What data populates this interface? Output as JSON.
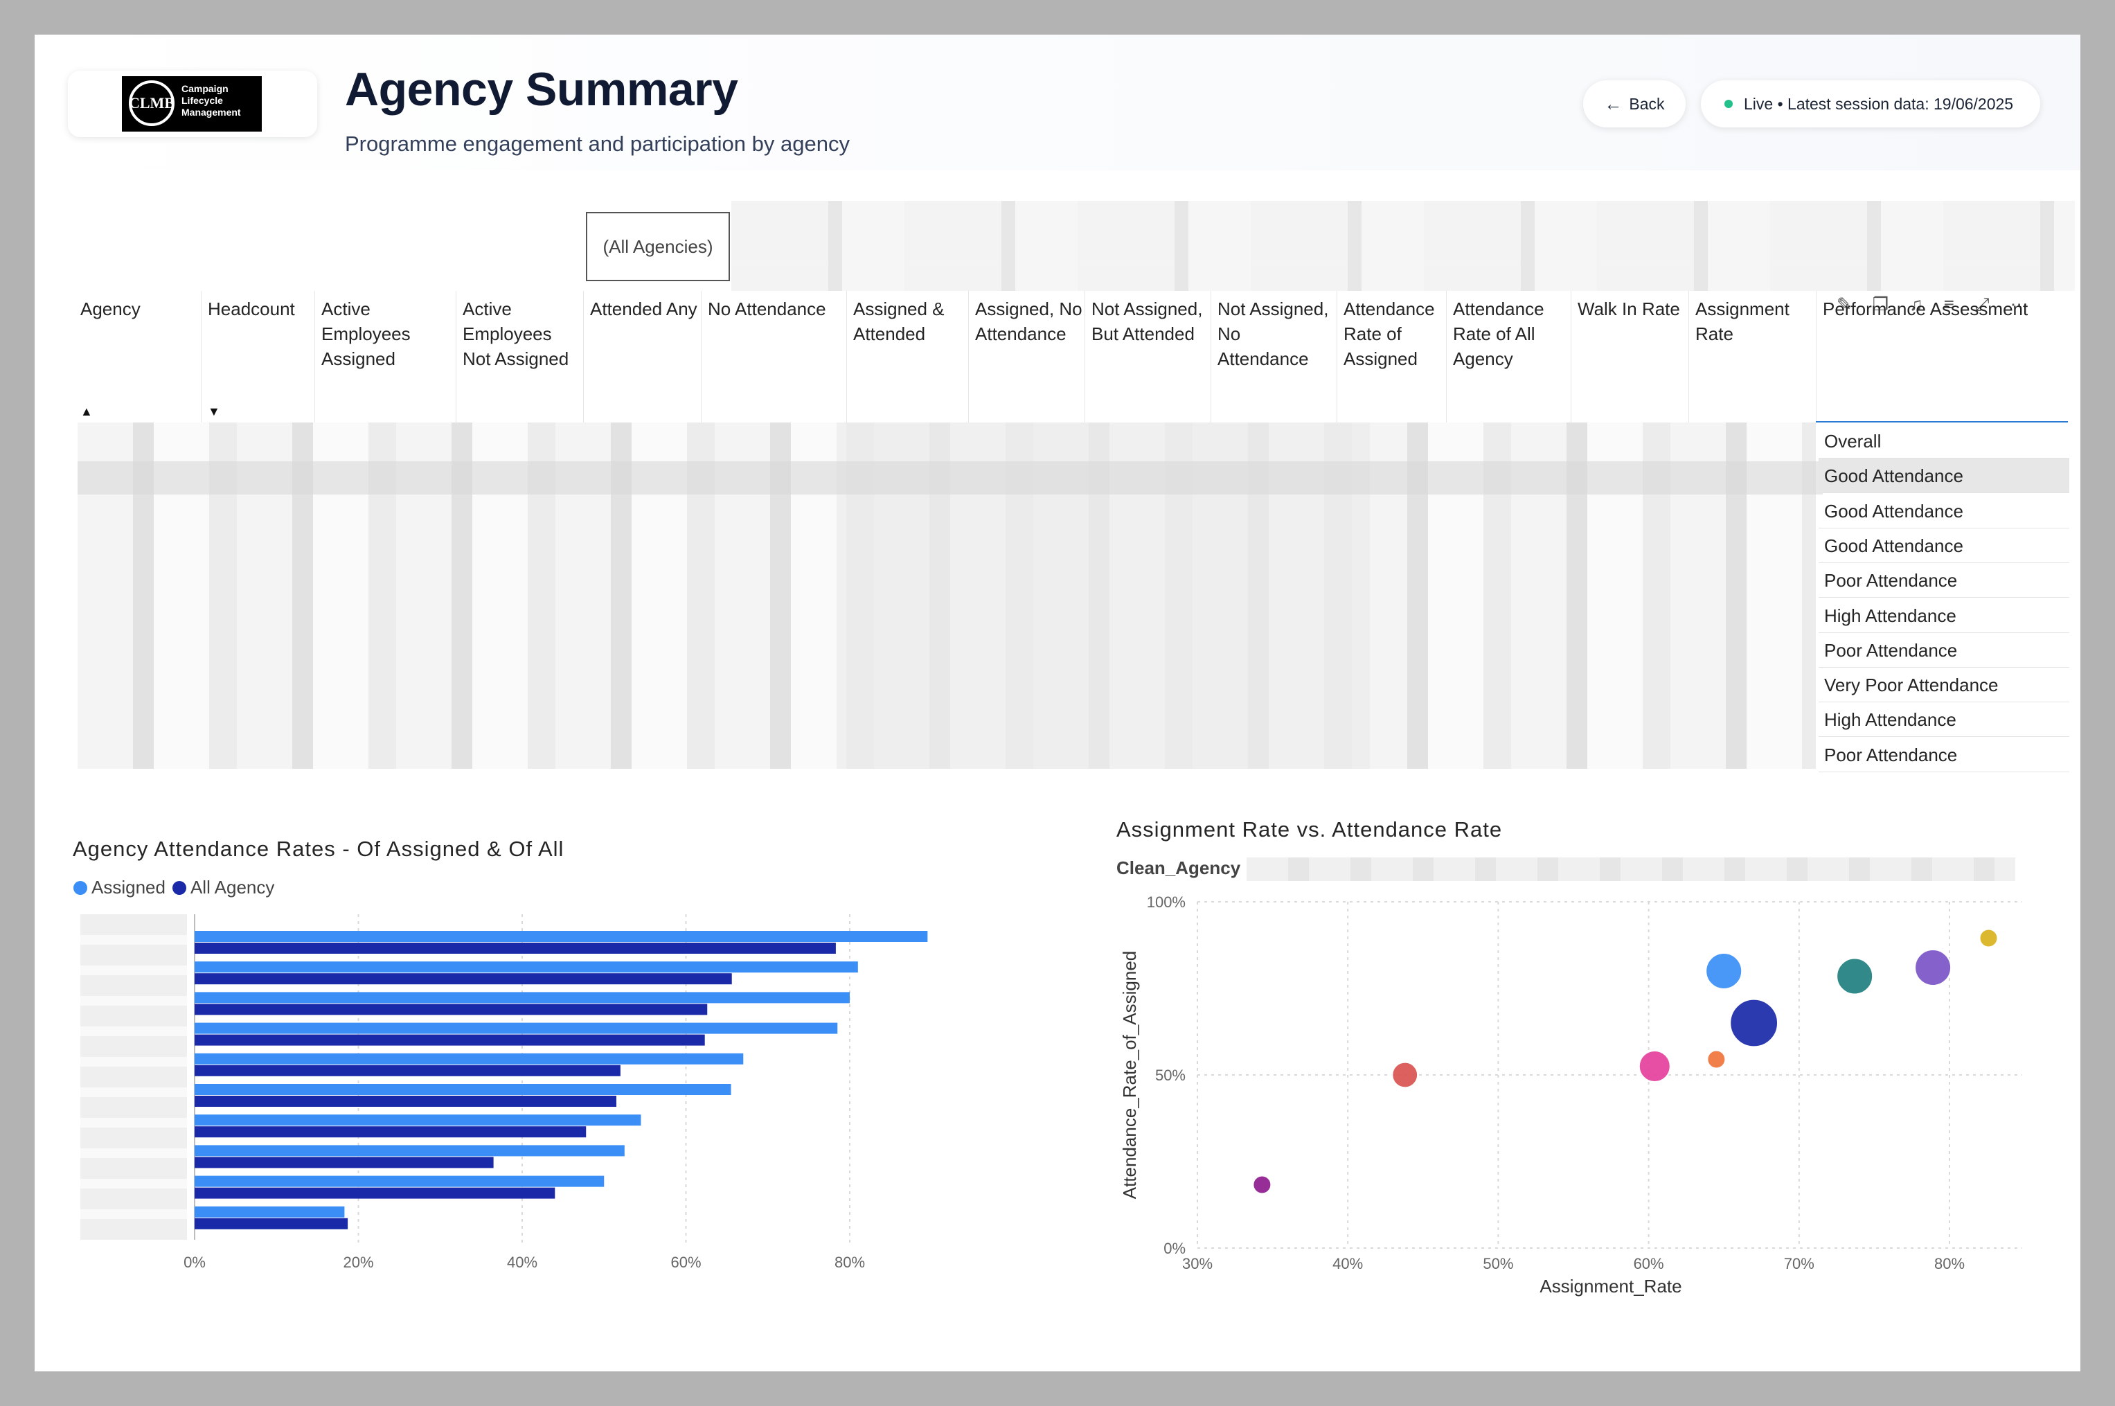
{
  "header": {
    "logo_mark": "CLMB",
    "logo_text": "Campaign Lifecycle Management",
    "title": "Agency Summary",
    "subtitle": "Programme engagement and participation by agency",
    "back_label": "Back",
    "back_icon": "arrow-left-icon",
    "live_label": "Live • Latest session data: 19/06/2025",
    "live_color": "#22c08a"
  },
  "slicer": {
    "value": "(All Agencies)"
  },
  "table": {
    "columns": [
      "Agency",
      "Headcount",
      "Active Employees Assigned",
      "Active Employees Not Assigned",
      "Attended Any",
      "No Attendance",
      "Assigned & Attended",
      "Assigned, No Attendance",
      "Not Assigned, But Attended",
      "Not Assigned, No Attendance",
      "Attendance Rate of Assigned",
      "Attendance Rate of All Agency",
      "Walk In Rate",
      "Assignment Rate",
      "Performance Assessment"
    ],
    "performance": [
      "Overall",
      "Good Attendance",
      "Good Attendance",
      "Good Attendance",
      "Poor Attendance",
      "High Attendance",
      "Poor Attendance",
      "Very Poor Attendance",
      "High Attendance",
      "Poor Attendance"
    ],
    "selected_row": 1
  },
  "bar_chart": {
    "title": "Agency Attendance Rates - Of Assigned & Of All",
    "legend": [
      "Assigned",
      "All Agency"
    ],
    "colors": {
      "assigned": "#3a8ef6",
      "all": "#1a29a8"
    },
    "ticks": [
      "0%",
      "20%",
      "40%",
      "60%",
      "80%"
    ]
  },
  "scatter_chart": {
    "title": "Assignment Rate vs. Attendance Rate",
    "legend_key": "Clean_Agency",
    "xlabel": "Assignment_Rate",
    "ylabel": "Attendance_Rate_of_Assigned",
    "xticks": [
      "30%",
      "40%",
      "50%",
      "60%",
      "70%",
      "80%"
    ],
    "yticks": [
      "0%",
      "50%",
      "100%"
    ]
  },
  "chart_data": [
    {
      "type": "bar",
      "orientation": "horizontal",
      "title": "Agency Attendance Rates - Of Assigned & Of All",
      "categories": [
        "",
        "",
        "",
        "",
        "",
        "",
        "",
        "",
        "",
        ""
      ],
      "series": [
        {
          "name": "Assigned",
          "values": [
            89.5,
            81,
            80,
            78.5,
            67,
            65.5,
            54.5,
            52.5,
            50,
            18.3
          ]
        },
        {
          "name": "All Agency",
          "values": [
            78.3,
            65.6,
            62.6,
            62.3,
            52,
            51.5,
            47.8,
            36.5,
            44,
            18.7
          ]
        }
      ],
      "xlim": [
        0,
        100
      ],
      "grid": true,
      "legend": "top-left"
    },
    {
      "type": "scatter",
      "title": "Assignment Rate vs. Attendance Rate",
      "xlabel": "Assignment_Rate",
      "ylabel": "Attendance_Rate_of_Assigned",
      "xlim": [
        30,
        85
      ],
      "ylim": [
        0,
        100
      ],
      "grid": true,
      "points": [
        {
          "x": 34.3,
          "y": 18.3,
          "size": 1,
          "color": "#8e1b8e"
        },
        {
          "x": 43.8,
          "y": 50,
          "size": 2,
          "color": "#d9534f"
        },
        {
          "x": 60.4,
          "y": 52.5,
          "size": 3,
          "color": "#e5409d"
        },
        {
          "x": 64.5,
          "y": 54.5,
          "size": 1,
          "color": "#f0743b"
        },
        {
          "x": 65,
          "y": 80,
          "size": 4,
          "color": "#3a8ef6"
        },
        {
          "x": 67,
          "y": 65,
          "size": 7,
          "color": "#1a29a8"
        },
        {
          "x": 73.7,
          "y": 78.5,
          "size": 4,
          "color": "#1f7f7f"
        },
        {
          "x": 78.9,
          "y": 81,
          "size": 4,
          "color": "#7b55c7"
        },
        {
          "x": 82.6,
          "y": 89.5,
          "size": 1,
          "color": "#d9b21f"
        }
      ]
    }
  ]
}
